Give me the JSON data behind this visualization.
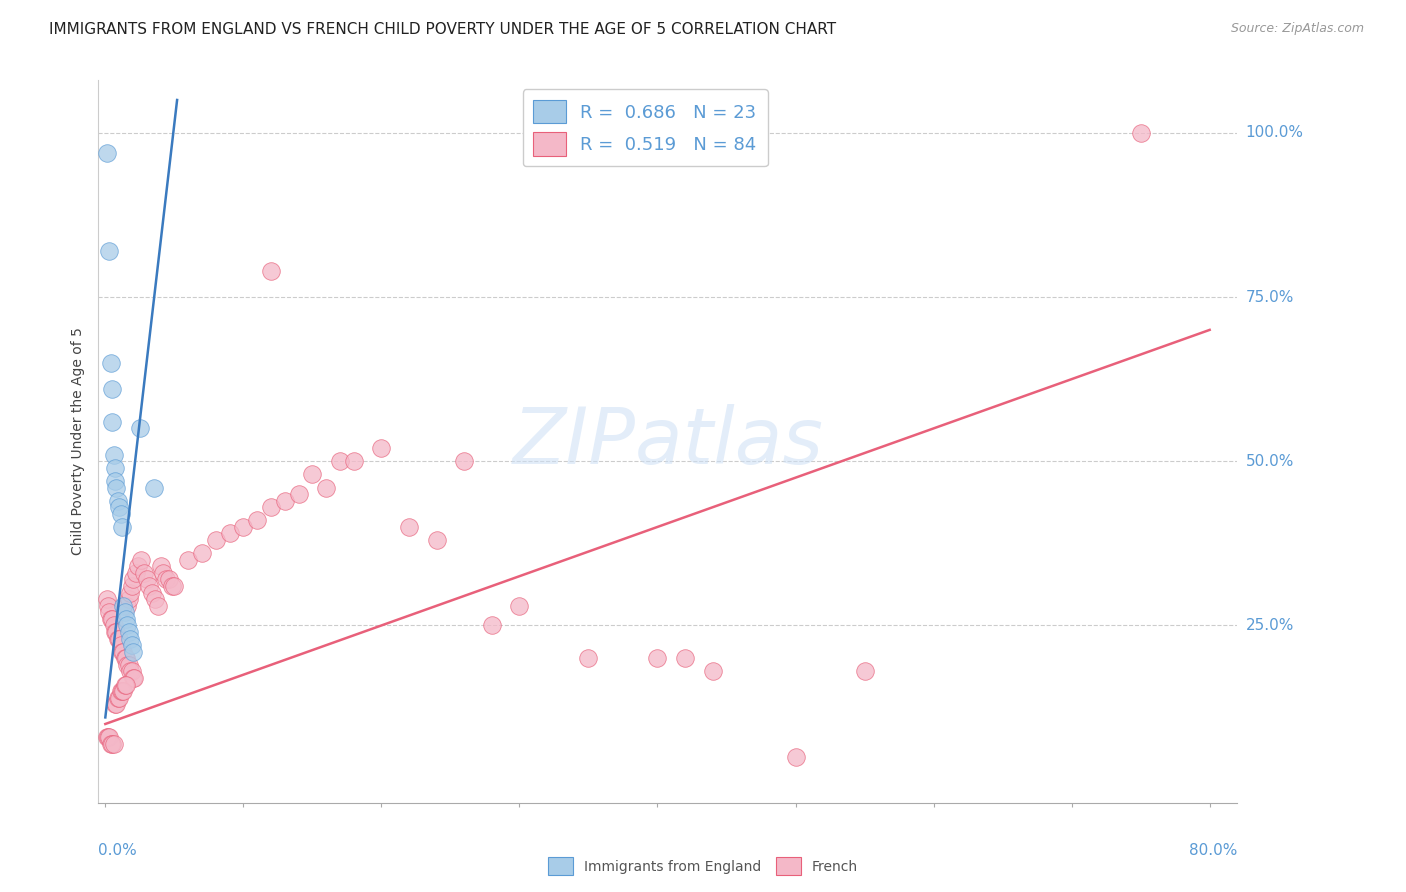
{
  "title": "IMMIGRANTS FROM ENGLAND VS FRENCH CHILD POVERTY UNDER THE AGE OF 5 CORRELATION CHART",
  "source": "Source: ZipAtlas.com",
  "ylabel": "Child Poverty Under the Age of 5",
  "ytick_labels": [
    "100.0%",
    "75.0%",
    "50.0%",
    "25.0%"
  ],
  "ytick_values": [
    1.0,
    0.75,
    0.5,
    0.25
  ],
  "xlim": [
    0.0,
    0.8
  ],
  "ylim": [
    0.0,
    1.05
  ],
  "watermark_text": "ZIPatlas",
  "blue_fill": "#a8cce8",
  "blue_edge": "#5b9bd5",
  "pink_fill": "#f4b8c8",
  "pink_edge": "#e8607a",
  "blue_line": "#3a7abf",
  "pink_line": "#e8607a",
  "title_fontsize": 11,
  "source_fontsize": 9,
  "ylabel_fontsize": 10,
  "tick_color": "#5b9bd5",
  "tick_fontsize": 11,
  "legend_fontsize": 13,
  "blue_scatter": [
    [
      0.001,
      0.97
    ],
    [
      0.003,
      0.82
    ],
    [
      0.004,
      0.65
    ],
    [
      0.005,
      0.61
    ],
    [
      0.005,
      0.56
    ],
    [
      0.006,
      0.51
    ],
    [
      0.007,
      0.49
    ],
    [
      0.007,
      0.47
    ],
    [
      0.008,
      0.46
    ],
    [
      0.009,
      0.44
    ],
    [
      0.01,
      0.43
    ],
    [
      0.011,
      0.42
    ],
    [
      0.012,
      0.4
    ],
    [
      0.013,
      0.28
    ],
    [
      0.014,
      0.27
    ],
    [
      0.015,
      0.26
    ],
    [
      0.016,
      0.25
    ],
    [
      0.017,
      0.24
    ],
    [
      0.018,
      0.23
    ],
    [
      0.019,
      0.22
    ],
    [
      0.02,
      0.21
    ],
    [
      0.025,
      0.55
    ],
    [
      0.035,
      0.46
    ]
  ],
  "pink_scatter": [
    [
      0.001,
      0.29
    ],
    [
      0.002,
      0.28
    ],
    [
      0.003,
      0.27
    ],
    [
      0.004,
      0.26
    ],
    [
      0.005,
      0.26
    ],
    [
      0.006,
      0.25
    ],
    [
      0.007,
      0.24
    ],
    [
      0.008,
      0.24
    ],
    [
      0.009,
      0.23
    ],
    [
      0.01,
      0.23
    ],
    [
      0.011,
      0.22
    ],
    [
      0.012,
      0.21
    ],
    [
      0.013,
      0.21
    ],
    [
      0.014,
      0.2
    ],
    [
      0.015,
      0.2
    ],
    [
      0.016,
      0.19
    ],
    [
      0.017,
      0.19
    ],
    [
      0.018,
      0.18
    ],
    [
      0.019,
      0.18
    ],
    [
      0.02,
      0.17
    ],
    [
      0.021,
      0.17
    ],
    [
      0.001,
      0.08
    ],
    [
      0.002,
      0.08
    ],
    [
      0.003,
      0.08
    ],
    [
      0.004,
      0.07
    ],
    [
      0.005,
      0.07
    ],
    [
      0.006,
      0.07
    ],
    [
      0.007,
      0.13
    ],
    [
      0.008,
      0.13
    ],
    [
      0.009,
      0.14
    ],
    [
      0.01,
      0.14
    ],
    [
      0.011,
      0.15
    ],
    [
      0.012,
      0.15
    ],
    [
      0.013,
      0.15
    ],
    [
      0.014,
      0.16
    ],
    [
      0.015,
      0.16
    ],
    [
      0.016,
      0.28
    ],
    [
      0.017,
      0.29
    ],
    [
      0.018,
      0.3
    ],
    [
      0.019,
      0.31
    ],
    [
      0.02,
      0.32
    ],
    [
      0.022,
      0.33
    ],
    [
      0.024,
      0.34
    ],
    [
      0.026,
      0.35
    ],
    [
      0.028,
      0.33
    ],
    [
      0.03,
      0.32
    ],
    [
      0.032,
      0.31
    ],
    [
      0.034,
      0.3
    ],
    [
      0.036,
      0.29
    ],
    [
      0.038,
      0.28
    ],
    [
      0.04,
      0.34
    ],
    [
      0.042,
      0.33
    ],
    [
      0.044,
      0.32
    ],
    [
      0.046,
      0.32
    ],
    [
      0.048,
      0.31
    ],
    [
      0.05,
      0.31
    ],
    [
      0.06,
      0.35
    ],
    [
      0.07,
      0.36
    ],
    [
      0.08,
      0.38
    ],
    [
      0.09,
      0.39
    ],
    [
      0.1,
      0.4
    ],
    [
      0.11,
      0.41
    ],
    [
      0.12,
      0.43
    ],
    [
      0.13,
      0.44
    ],
    [
      0.14,
      0.45
    ],
    [
      0.15,
      0.48
    ],
    [
      0.16,
      0.46
    ],
    [
      0.17,
      0.5
    ],
    [
      0.18,
      0.5
    ],
    [
      0.2,
      0.52
    ],
    [
      0.22,
      0.4
    ],
    [
      0.24,
      0.38
    ],
    [
      0.26,
      0.5
    ],
    [
      0.28,
      0.25
    ],
    [
      0.3,
      0.28
    ],
    [
      0.35,
      0.2
    ],
    [
      0.4,
      0.2
    ],
    [
      0.42,
      0.2
    ],
    [
      0.44,
      0.18
    ],
    [
      0.5,
      0.05
    ],
    [
      0.55,
      0.18
    ],
    [
      0.75,
      1.0
    ],
    [
      0.12,
      0.79
    ]
  ],
  "blue_line_x": [
    0.0,
    0.052
  ],
  "blue_line_y": [
    0.11,
    1.05
  ],
  "pink_line_x": [
    0.0,
    0.8
  ],
  "pink_line_y": [
    0.1,
    0.7
  ]
}
